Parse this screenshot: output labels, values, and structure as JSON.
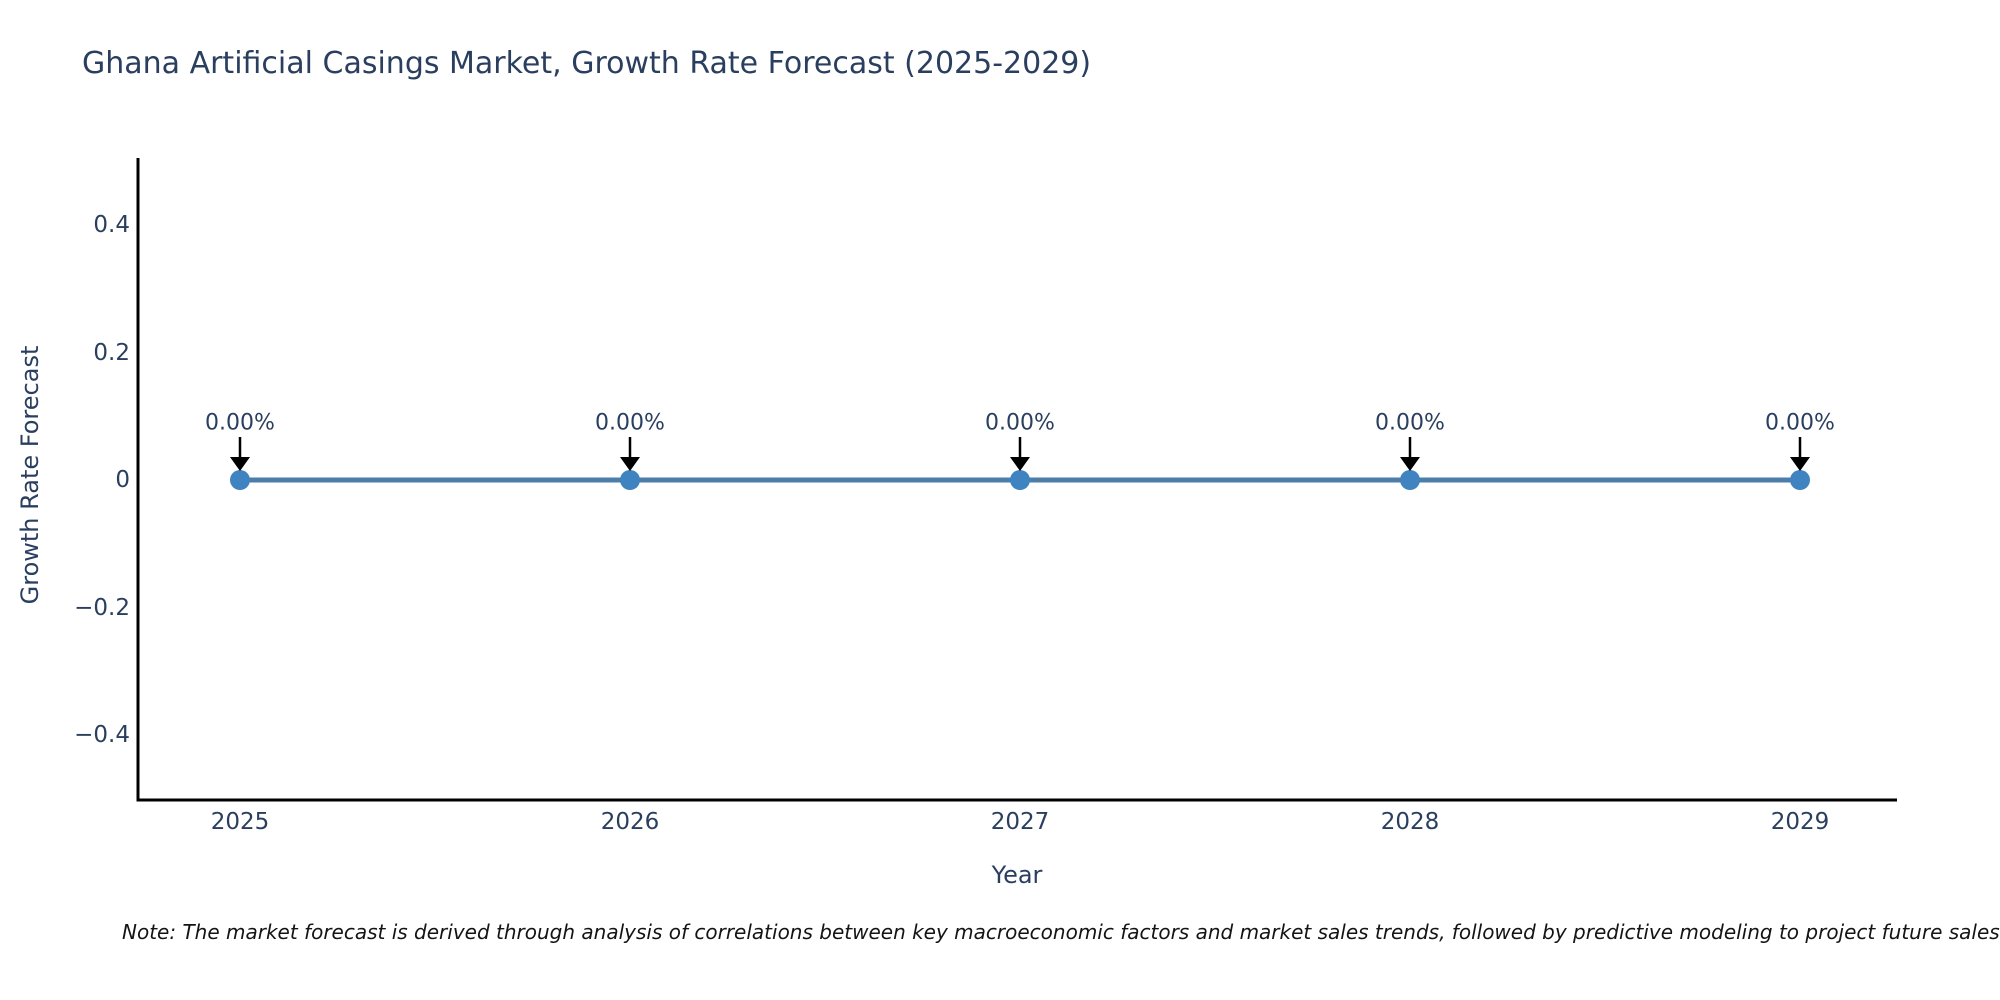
{
  "title": "Ghana Artificial Casings Market, Growth Rate Forecast (2025-2029)",
  "note": "Note: The market forecast is derived through analysis of correlations between key macroeconomic factors and market sales trends, followed by predictive modeling to project future sales.",
  "chart_data": {
    "type": "line",
    "title": "Ghana Artificial Casings Market, Growth Rate Forecast (2025-2029)",
    "xlabel": "Year",
    "ylabel": "Growth Rate Forecast",
    "x": [
      2025,
      2026,
      2027,
      2028,
      2029
    ],
    "values": [
      0,
      0,
      0,
      0,
      0
    ],
    "point_labels": [
      "0.00%",
      "0.00%",
      "0.00%",
      "0.00%",
      "0.00%"
    ],
    "x_tick_labels": [
      "2025",
      "2026",
      "2027",
      "2028",
      "2029"
    ],
    "y_ticks": [
      0.4,
      0.2,
      0,
      -0.2,
      -0.4
    ],
    "y_tick_labels": [
      "0.4",
      "0.2",
      "0",
      "−0.2",
      "−0.4"
    ],
    "ylim": [
      -0.5,
      0.5
    ],
    "grid": false,
    "legend": false,
    "line_color": "#4d7da9",
    "marker_color": "#3f83c0",
    "arrow_color": "#000000",
    "axis_color": "#000000",
    "text_color": "#2a3f5f"
  }
}
